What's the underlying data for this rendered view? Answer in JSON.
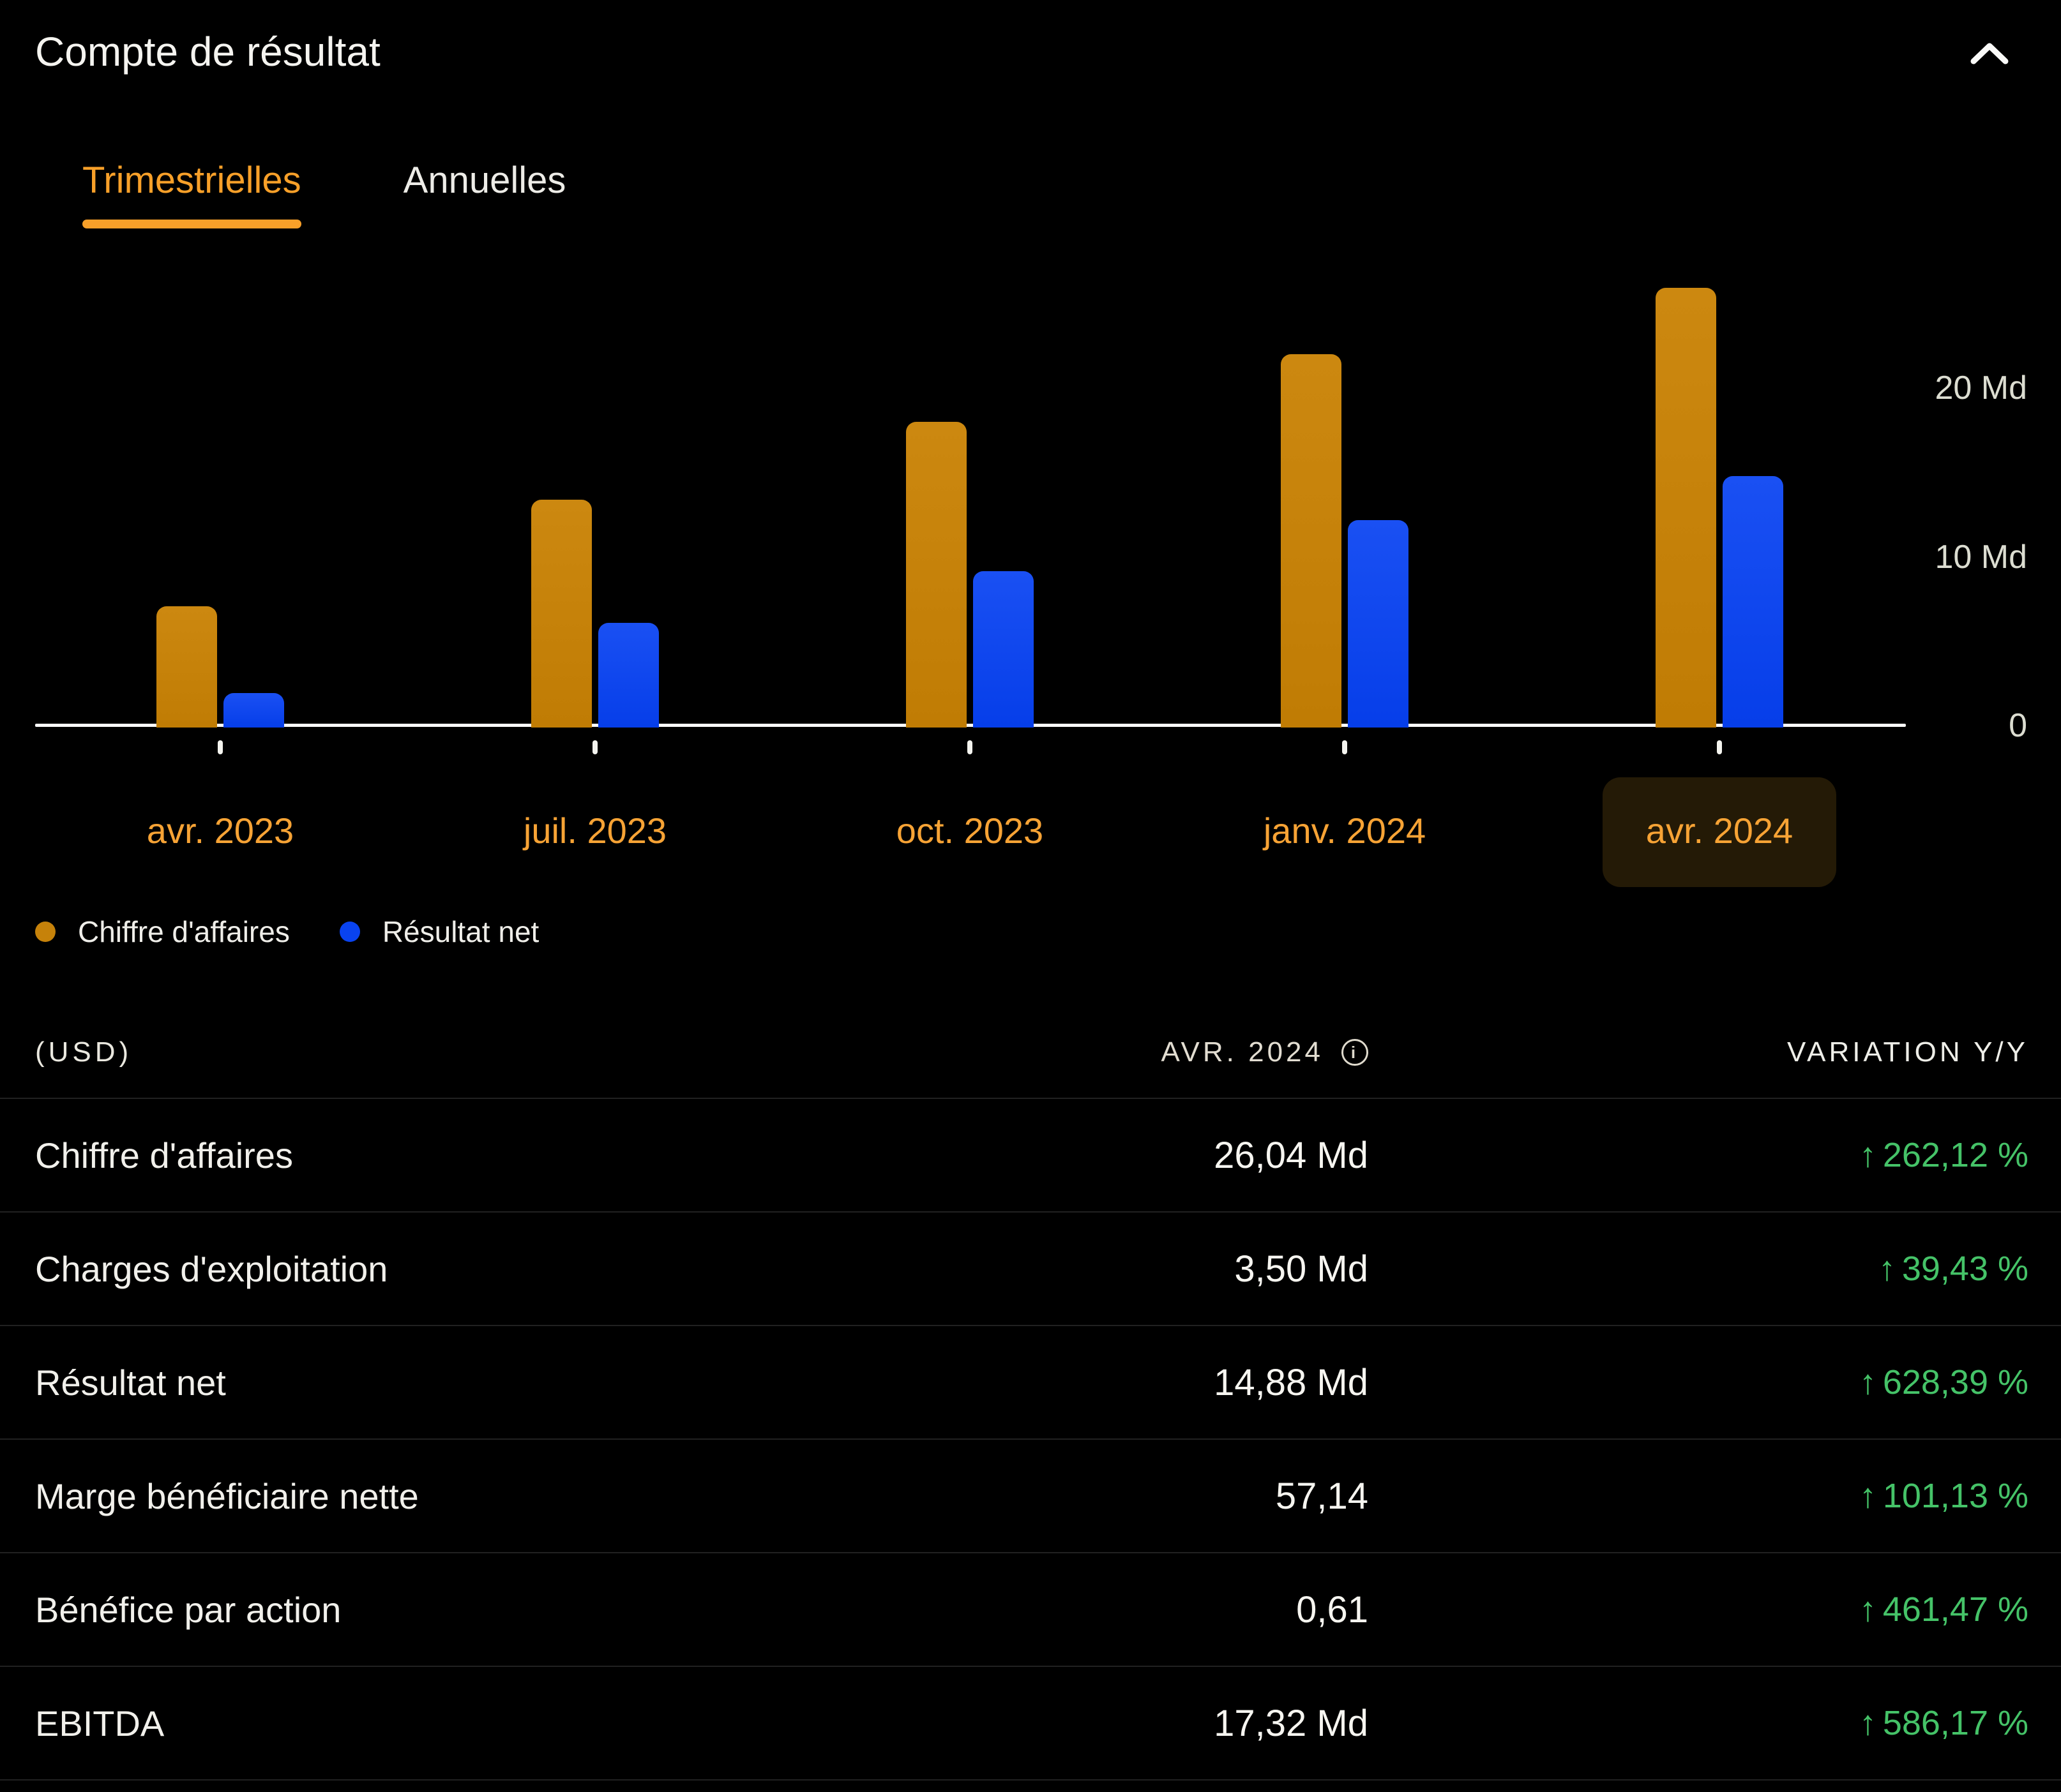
{
  "panel": {
    "title": "Compte de résultat"
  },
  "tabs": [
    {
      "label": "Trimestrielles",
      "active": true
    },
    {
      "label": "Annuelles",
      "active": false
    }
  ],
  "chart_data": {
    "type": "bar",
    "categories": [
      "avr. 2023",
      "juil. 2023",
      "oct. 2023",
      "janv. 2024",
      "avr. 2024"
    ],
    "series": [
      {
        "name": "Chiffre d'affaires",
        "color": "#C6820A",
        "values": [
          7.2,
          13.5,
          18.1,
          22.1,
          26.04
        ]
      },
      {
        "name": "Résultat net",
        "color": "#0943F0",
        "values": [
          2.04,
          6.2,
          9.25,
          12.3,
          14.88
        ]
      }
    ],
    "unit": "Md",
    "y_ticks": [
      {
        "label": "20 Md",
        "value": 20
      },
      {
        "label": "10 Md",
        "value": 10
      },
      {
        "label": "0",
        "value": 0
      }
    ],
    "ylim": [
      0,
      27
    ],
    "grid": false,
    "legend_position": "bottom",
    "selected_category": "avr. 2024"
  },
  "table": {
    "currency_note": "(USD)",
    "period_header": "AVR. 2024",
    "variation_header": "VARIATION Y/Y",
    "up_arrow": "↑",
    "rows": [
      {
        "label": "Chiffre d'affaires",
        "value": "26,04 Md",
        "variation": "262,12 %",
        "direction": "up"
      },
      {
        "label": "Charges d'exploitation",
        "value": "3,50 Md",
        "variation": "39,43 %",
        "direction": "up"
      },
      {
        "label": "Résultat net",
        "value": "14,88 Md",
        "variation": "628,39 %",
        "direction": "up"
      },
      {
        "label": "Marge bénéficiaire nette",
        "value": "57,14",
        "variation": "101,13 %",
        "direction": "up"
      },
      {
        "label": "Bénéfice par action",
        "value": "0,61",
        "variation": "461,47 %",
        "direction": "up"
      },
      {
        "label": "EBITDA",
        "value": "17,32 Md",
        "variation": "586,17 %",
        "direction": "up"
      }
    ]
  },
  "colors": {
    "background": "#000000",
    "accent_orange": "#F8A029",
    "bar_orange": "#C6820A",
    "bar_blue": "#0943F0",
    "positive_green": "#45C368",
    "axis_white": "#FCFCFA",
    "selected_pill": "#241A06"
  }
}
